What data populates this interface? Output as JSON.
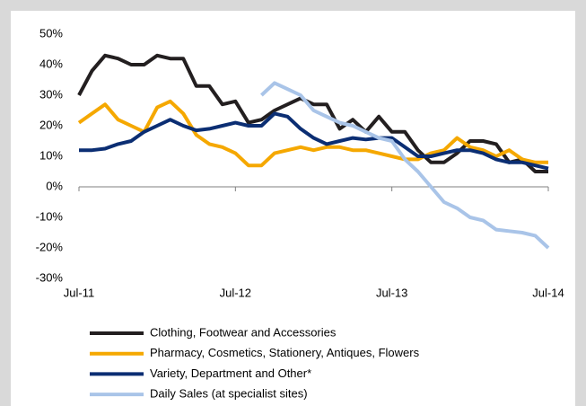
{
  "chart_data": {
    "type": "line",
    "categories": [
      "Jul-11",
      null,
      null,
      null,
      null,
      null,
      null,
      null,
      null,
      null,
      null,
      null,
      "Jul-12",
      null,
      null,
      null,
      null,
      null,
      null,
      null,
      null,
      null,
      null,
      null,
      "Jul-13",
      null,
      null,
      null,
      null,
      null,
      null,
      null,
      null,
      null,
      null,
      null,
      "Jul-14"
    ],
    "series": [
      {
        "name": "Clothing, Footwear and Accessories",
        "color": "#231f20",
        "values": [
          30,
          38,
          43,
          42,
          40,
          40,
          43,
          42,
          42,
          33,
          33,
          27,
          28,
          21,
          22,
          25,
          27,
          29,
          27,
          27,
          19,
          22,
          18,
          23,
          18,
          18,
          12,
          8,
          8,
          11,
          15,
          15,
          14,
          8,
          9,
          5,
          5
        ]
      },
      {
        "name": "Pharmacy, Cosmetics, Stationery, Antiques, Flowers",
        "color": "#f5a800",
        "values": [
          21,
          24,
          27,
          22,
          20,
          18,
          26,
          28,
          24,
          17,
          14,
          13,
          11,
          7,
          7,
          11,
          12,
          13,
          12,
          13,
          13,
          12,
          12,
          11,
          10,
          9,
          9,
          11,
          12,
          16,
          13,
          12,
          10,
          12,
          9,
          8,
          8
        ]
      },
      {
        "name": "Variety, Department and Other*",
        "color": "#0b2e73",
        "values": [
          12,
          12,
          12.5,
          14,
          15,
          18,
          20,
          22,
          20,
          18.5,
          19,
          20,
          21,
          20,
          20,
          24,
          23,
          19,
          16,
          14,
          15,
          16,
          15.5,
          16,
          16,
          13,
          10,
          10,
          11,
          12,
          12,
          11,
          9,
          8,
          8,
          7,
          6
        ]
      },
      {
        "name": "Daily Sales (at specialist sites)",
        "color": "#a9c4e8",
        "values": [
          null,
          null,
          null,
          null,
          null,
          null,
          null,
          null,
          null,
          null,
          null,
          null,
          null,
          null,
          30,
          34,
          32,
          30,
          25,
          23,
          21,
          20,
          18,
          16,
          15,
          9,
          5,
          0,
          -5,
          -7,
          -10,
          -11,
          -14,
          -14.5,
          -15,
          -16,
          -20
        ]
      }
    ],
    "ylim": [
      -30,
      50
    ],
    "yticks": [
      {
        "value": -30,
        "label": "-30%"
      },
      {
        "value": -20,
        "label": "-20%"
      },
      {
        "value": -10,
        "label": "-10%"
      },
      {
        "value": 0,
        "label": "0%"
      },
      {
        "value": 10,
        "label": "10%"
      },
      {
        "value": 20,
        "label": "20%"
      },
      {
        "value": 30,
        "label": "30%"
      },
      {
        "value": 40,
        "label": "40%"
      },
      {
        "value": 50,
        "label": "50%"
      }
    ],
    "grid": false
  }
}
